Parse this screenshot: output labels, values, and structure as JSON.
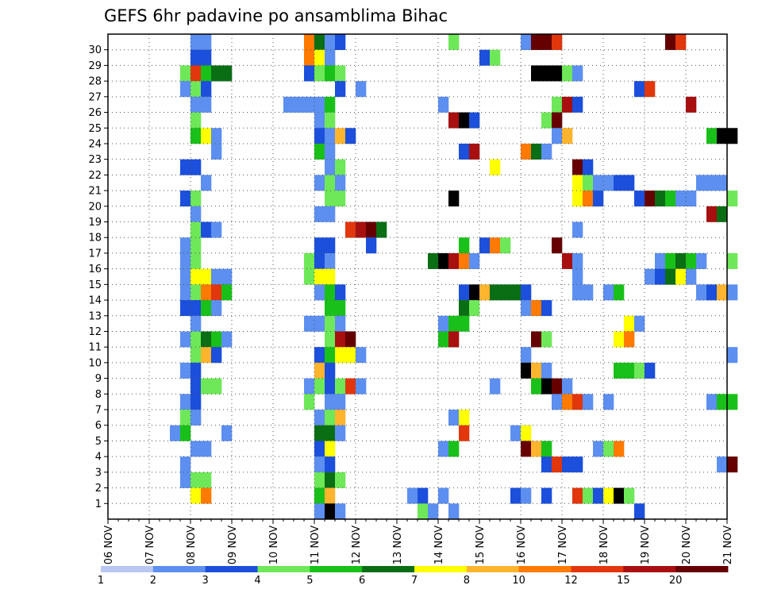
{
  "chart_data": {
    "type": "heatmap",
    "title": "GEFS 6hr padavine po ansamblima Bihac",
    "x_tick_labels": [
      "06 NOV",
      "07 NOV",
      "08 NOV",
      "09 NOV",
      "10 NOV",
      "11 NOV",
      "12 NOV",
      "13 NOV",
      "14 NOV",
      "15 NOV",
      "16 NOV",
      "17 NOV",
      "18 NOV",
      "19 NOV",
      "20 NOV",
      "21 NOV"
    ],
    "y_tick_labels": [
      "1",
      "2",
      "3",
      "4",
      "5",
      "6",
      "7",
      "8",
      "9",
      "10",
      "11",
      "12",
      "13",
      "14",
      "15",
      "16",
      "17",
      "18",
      "19",
      "20",
      "21",
      "22",
      "23",
      "24",
      "25",
      "26",
      "27",
      "28",
      "29",
      "30"
    ],
    "x_range": [
      "06 NOV",
      "21 NOV"
    ],
    "y_range": [
      1,
      30
    ],
    "steps_per_day": 4,
    "grid": "dotted",
    "colorbar": {
      "labels": [
        "1",
        "2",
        "3",
        "4",
        "5",
        "6",
        "7",
        "8",
        "10",
        "12",
        "15",
        "20"
      ],
      "colors": [
        "#b9c8f2",
        "#5c8ff0",
        "#1b4fdc",
        "#6ee858",
        "#19c019",
        "#0a6e14",
        "#ffff00",
        "#ffb42e",
        "#ff7a00",
        "#e2360c",
        "#a80f0f",
        "#660000"
      ]
    },
    "cells": [
      [
        30,
        8,
        1
      ],
      [
        30,
        9,
        1
      ],
      [
        30,
        19,
        8
      ],
      [
        30,
        20,
        5
      ],
      [
        30,
        21,
        1
      ],
      [
        30,
        22,
        2
      ],
      [
        30,
        33,
        3
      ],
      [
        30,
        40,
        1
      ],
      [
        30,
        41,
        11
      ],
      [
        30,
        42,
        11
      ],
      [
        30,
        43,
        9
      ],
      [
        30,
        54,
        11
      ],
      [
        30,
        55,
        9
      ],
      [
        29,
        8,
        2
      ],
      [
        29,
        9,
        2
      ],
      [
        29,
        19,
        8
      ],
      [
        29,
        20,
        6
      ],
      [
        29,
        21,
        1
      ],
      [
        29,
        36,
        2
      ],
      [
        29,
        37,
        3
      ],
      [
        28,
        7,
        3
      ],
      [
        28,
        8,
        9
      ],
      [
        28,
        9,
        4
      ],
      [
        28,
        10,
        5
      ],
      [
        28,
        11,
        5
      ],
      [
        28,
        19,
        2
      ],
      [
        28,
        20,
        3
      ],
      [
        28,
        21,
        4
      ],
      [
        28,
        22,
        3
      ],
      [
        28,
        41,
        12
      ],
      [
        28,
        42,
        12
      ],
      [
        28,
        43,
        12
      ],
      [
        28,
        44,
        3
      ],
      [
        28,
        45,
        1
      ],
      [
        27,
        7,
        1
      ],
      [
        27,
        8,
        3
      ],
      [
        27,
        9,
        2
      ],
      [
        27,
        22,
        2
      ],
      [
        27,
        24,
        1
      ],
      [
        27,
        51,
        2
      ],
      [
        27,
        52,
        9
      ],
      [
        26,
        8,
        1
      ],
      [
        26,
        9,
        1
      ],
      [
        26,
        17,
        1
      ],
      [
        26,
        18,
        1
      ],
      [
        26,
        19,
        1
      ],
      [
        26,
        20,
        1
      ],
      [
        26,
        21,
        4
      ],
      [
        26,
        32,
        1
      ],
      [
        26,
        43,
        3
      ],
      [
        26,
        44,
        10
      ],
      [
        26,
        45,
        2
      ],
      [
        26,
        56,
        10
      ],
      [
        25,
        8,
        3
      ],
      [
        25,
        20,
        1
      ],
      [
        25,
        21,
        3
      ],
      [
        25,
        33,
        10
      ],
      [
        25,
        34,
        12
      ],
      [
        25,
        35,
        2
      ],
      [
        25,
        42,
        3
      ],
      [
        25,
        43,
        11
      ],
      [
        24,
        8,
        4
      ],
      [
        24,
        9,
        6
      ],
      [
        24,
        10,
        1
      ],
      [
        24,
        20,
        2
      ],
      [
        24,
        21,
        1
      ],
      [
        24,
        22,
        7
      ],
      [
        24,
        23,
        2
      ],
      [
        24,
        43,
        1
      ],
      [
        24,
        44,
        7
      ],
      [
        24,
        58,
        4
      ],
      [
        24,
        59,
        12
      ],
      [
        24,
        60,
        12
      ],
      [
        23,
        10,
        1
      ],
      [
        23,
        20,
        4
      ],
      [
        23,
        21,
        1
      ],
      [
        23,
        34,
        2
      ],
      [
        23,
        35,
        10
      ],
      [
        23,
        40,
        8
      ],
      [
        23,
        41,
        5
      ],
      [
        23,
        42,
        1
      ],
      [
        22,
        7,
        2
      ],
      [
        22,
        8,
        2
      ],
      [
        22,
        21,
        1
      ],
      [
        22,
        22,
        3
      ],
      [
        22,
        37,
        6
      ],
      [
        22,
        45,
        11
      ],
      [
        22,
        46,
        2
      ],
      [
        21,
        9,
        1
      ],
      [
        21,
        20,
        1
      ],
      [
        21,
        21,
        3
      ],
      [
        21,
        22,
        1
      ],
      [
        21,
        45,
        6
      ],
      [
        21,
        46,
        3
      ],
      [
        21,
        47,
        1
      ],
      [
        21,
        48,
        1
      ],
      [
        21,
        49,
        2
      ],
      [
        21,
        50,
        2
      ],
      [
        21,
        57,
        1
      ],
      [
        21,
        58,
        1
      ],
      [
        21,
        59,
        1
      ],
      [
        20,
        7,
        2
      ],
      [
        20,
        8,
        3
      ],
      [
        20,
        21,
        3
      ],
      [
        20,
        22,
        3
      ],
      [
        20,
        33,
        12
      ],
      [
        20,
        45,
        6
      ],
      [
        20,
        46,
        8
      ],
      [
        20,
        47,
        2
      ],
      [
        20,
        51,
        2
      ],
      [
        20,
        52,
        11
      ],
      [
        20,
        53,
        5
      ],
      [
        20,
        54,
        4
      ],
      [
        20,
        55,
        1
      ],
      [
        20,
        56,
        1
      ],
      [
        20,
        60,
        3
      ],
      [
        19,
        8,
        1
      ],
      [
        19,
        20,
        1
      ],
      [
        19,
        21,
        1
      ],
      [
        19,
        58,
        10
      ],
      [
        19,
        59,
        5
      ],
      [
        18,
        8,
        3
      ],
      [
        18,
        9,
        2
      ],
      [
        18,
        10,
        1
      ],
      [
        18,
        23,
        9
      ],
      [
        18,
        24,
        10
      ],
      [
        18,
        25,
        11
      ],
      [
        18,
        26,
        5
      ],
      [
        18,
        45,
        1
      ],
      [
        17,
        7,
        1
      ],
      [
        17,
        8,
        3
      ],
      [
        17,
        20,
        2
      ],
      [
        17,
        21,
        2
      ],
      [
        17,
        25,
        2
      ],
      [
        17,
        34,
        4
      ],
      [
        17,
        36,
        2
      ],
      [
        17,
        37,
        8
      ],
      [
        17,
        38,
        3
      ],
      [
        17,
        43,
        11
      ],
      [
        16,
        7,
        1
      ],
      [
        16,
        8,
        3
      ],
      [
        16,
        19,
        3
      ],
      [
        16,
        20,
        2
      ],
      [
        16,
        21,
        1
      ],
      [
        16,
        31,
        5
      ],
      [
        16,
        32,
        12
      ],
      [
        16,
        33,
        10
      ],
      [
        16,
        34,
        8
      ],
      [
        16,
        35,
        1
      ],
      [
        16,
        44,
        10
      ],
      [
        16,
        45,
        1
      ],
      [
        16,
        53,
        1
      ],
      [
        16,
        54,
        4
      ],
      [
        16,
        55,
        5
      ],
      [
        16,
        56,
        4
      ],
      [
        16,
        57,
        1
      ],
      [
        16,
        60,
        3
      ],
      [
        15,
        7,
        1
      ],
      [
        15,
        8,
        6
      ],
      [
        15,
        9,
        6
      ],
      [
        15,
        10,
        1
      ],
      [
        15,
        11,
        1
      ],
      [
        15,
        19,
        3
      ],
      [
        15,
        20,
        6
      ],
      [
        15,
        21,
        6
      ],
      [
        15,
        45,
        1
      ],
      [
        15,
        52,
        1
      ],
      [
        15,
        53,
        2
      ],
      [
        15,
        54,
        5
      ],
      [
        15,
        55,
        6
      ],
      [
        15,
        56,
        1
      ],
      [
        14,
        7,
        1
      ],
      [
        14,
        8,
        3
      ],
      [
        14,
        9,
        8
      ],
      [
        14,
        10,
        9
      ],
      [
        14,
        11,
        4
      ],
      [
        14,
        20,
        1
      ],
      [
        14,
        21,
        4
      ],
      [
        14,
        22,
        2
      ],
      [
        14,
        34,
        2
      ],
      [
        14,
        35,
        12
      ],
      [
        14,
        36,
        7
      ],
      [
        14,
        37,
        5
      ],
      [
        14,
        38,
        5
      ],
      [
        14,
        39,
        5
      ],
      [
        14,
        40,
        2
      ],
      [
        14,
        45,
        1
      ],
      [
        14,
        46,
        1
      ],
      [
        14,
        48,
        1
      ],
      [
        14,
        49,
        4
      ],
      [
        14,
        57,
        1
      ],
      [
        14,
        58,
        2
      ],
      [
        14,
        59,
        7
      ],
      [
        14,
        60,
        1
      ],
      [
        13,
        7,
        2
      ],
      [
        13,
        8,
        2
      ],
      [
        13,
        9,
        4
      ],
      [
        13,
        10,
        1
      ],
      [
        13,
        21,
        4
      ],
      [
        13,
        22,
        4
      ],
      [
        13,
        34,
        5
      ],
      [
        13,
        35,
        3
      ],
      [
        13,
        40,
        1
      ],
      [
        13,
        41,
        8
      ],
      [
        13,
        42,
        2
      ],
      [
        12,
        8,
        1
      ],
      [
        12,
        19,
        1
      ],
      [
        12,
        20,
        1
      ],
      [
        12,
        21,
        3
      ],
      [
        12,
        22,
        1
      ],
      [
        12,
        32,
        1
      ],
      [
        12,
        33,
        4
      ],
      [
        12,
        34,
        4
      ],
      [
        12,
        50,
        6
      ],
      [
        12,
        51,
        1
      ],
      [
        11,
        7,
        1
      ],
      [
        11,
        8,
        3
      ],
      [
        11,
        9,
        5
      ],
      [
        11,
        10,
        4
      ],
      [
        11,
        11,
        1
      ],
      [
        11,
        21,
        3
      ],
      [
        11,
        22,
        10
      ],
      [
        11,
        23,
        11
      ],
      [
        11,
        32,
        4
      ],
      [
        11,
        33,
        10
      ],
      [
        11,
        41,
        11
      ],
      [
        11,
        42,
        3
      ],
      [
        11,
        49,
        6
      ],
      [
        11,
        50,
        8
      ],
      [
        10,
        8,
        3
      ],
      [
        10,
        9,
        7
      ],
      [
        10,
        10,
        2
      ],
      [
        10,
        20,
        2
      ],
      [
        10,
        21,
        4
      ],
      [
        10,
        22,
        6
      ],
      [
        10,
        23,
        6
      ],
      [
        10,
        24,
        1
      ],
      [
        10,
        40,
        1
      ],
      [
        10,
        60,
        1
      ],
      [
        9,
        7,
        1
      ],
      [
        9,
        8,
        2
      ],
      [
        9,
        20,
        7
      ],
      [
        9,
        21,
        2
      ],
      [
        9,
        40,
        12
      ],
      [
        9,
        41,
        7
      ],
      [
        9,
        42,
        1
      ],
      [
        9,
        49,
        4
      ],
      [
        9,
        50,
        4
      ],
      [
        9,
        51,
        3
      ],
      [
        9,
        52,
        2
      ],
      [
        8,
        8,
        2
      ],
      [
        8,
        9,
        3
      ],
      [
        8,
        10,
        3
      ],
      [
        8,
        19,
        1
      ],
      [
        8,
        20,
        3
      ],
      [
        8,
        21,
        2
      ],
      [
        8,
        22,
        3
      ],
      [
        8,
        23,
        9
      ],
      [
        8,
        24,
        1
      ],
      [
        8,
        37,
        1
      ],
      [
        8,
        41,
        4
      ],
      [
        8,
        42,
        12
      ],
      [
        8,
        43,
        11
      ],
      [
        8,
        44,
        1
      ],
      [
        7,
        7,
        1
      ],
      [
        7,
        8,
        2
      ],
      [
        7,
        19,
        3
      ],
      [
        7,
        21,
        1
      ],
      [
        7,
        22,
        1
      ],
      [
        7,
        43,
        1
      ],
      [
        7,
        44,
        8
      ],
      [
        7,
        45,
        9
      ],
      [
        7,
        46,
        1
      ],
      [
        7,
        48,
        1
      ],
      [
        7,
        58,
        1
      ],
      [
        7,
        59,
        4
      ],
      [
        7,
        60,
        4
      ],
      [
        6,
        7,
        3
      ],
      [
        6,
        8,
        1
      ],
      [
        6,
        20,
        1
      ],
      [
        6,
        21,
        3
      ],
      [
        6,
        22,
        7
      ],
      [
        6,
        33,
        1
      ],
      [
        6,
        34,
        6
      ],
      [
        5,
        6,
        1
      ],
      [
        5,
        7,
        4
      ],
      [
        5,
        11,
        1
      ],
      [
        5,
        20,
        5
      ],
      [
        5,
        21,
        5
      ],
      [
        5,
        22,
        1
      ],
      [
        5,
        34,
        9
      ],
      [
        5,
        39,
        1
      ],
      [
        5,
        40,
        6
      ],
      [
        4,
        8,
        1
      ],
      [
        4,
        9,
        1
      ],
      [
        4,
        20,
        2
      ],
      [
        4,
        21,
        6
      ],
      [
        4,
        32,
        1
      ],
      [
        4,
        33,
        4
      ],
      [
        4,
        40,
        11
      ],
      [
        4,
        41,
        7
      ],
      [
        4,
        42,
        4
      ],
      [
        4,
        47,
        1
      ],
      [
        4,
        48,
        3
      ],
      [
        4,
        49,
        8
      ],
      [
        3,
        7,
        1
      ],
      [
        3,
        20,
        1
      ],
      [
        3,
        21,
        2
      ],
      [
        3,
        42,
        2
      ],
      [
        3,
        43,
        9
      ],
      [
        3,
        44,
        2
      ],
      [
        3,
        45,
        2
      ],
      [
        3,
        59,
        1
      ],
      [
        3,
        60,
        11
      ],
      [
        2,
        7,
        1
      ],
      [
        2,
        8,
        3
      ],
      [
        2,
        9,
        3
      ],
      [
        2,
        20,
        3
      ],
      [
        2,
        21,
        5
      ],
      [
        2,
        22,
        3
      ],
      [
        1,
        8,
        6
      ],
      [
        1,
        9,
        8
      ],
      [
        1,
        20,
        4
      ],
      [
        1,
        21,
        7
      ],
      [
        1,
        29,
        1
      ],
      [
        1,
        30,
        2
      ],
      [
        1,
        32,
        1
      ],
      [
        1,
        39,
        2
      ],
      [
        1,
        40,
        1
      ],
      [
        1,
        42,
        2
      ],
      [
        1,
        45,
        9
      ],
      [
        1,
        46,
        3
      ],
      [
        1,
        47,
        2
      ],
      [
        1,
        48,
        6
      ],
      [
        1,
        49,
        12
      ],
      [
        1,
        50,
        3
      ],
      [
        0,
        20,
        1
      ],
      [
        0,
        21,
        12
      ],
      [
        0,
        22,
        1
      ],
      [
        0,
        30,
        3
      ],
      [
        0,
        31,
        1
      ],
      [
        0,
        33,
        1
      ],
      [
        0,
        51,
        2
      ]
    ]
  }
}
